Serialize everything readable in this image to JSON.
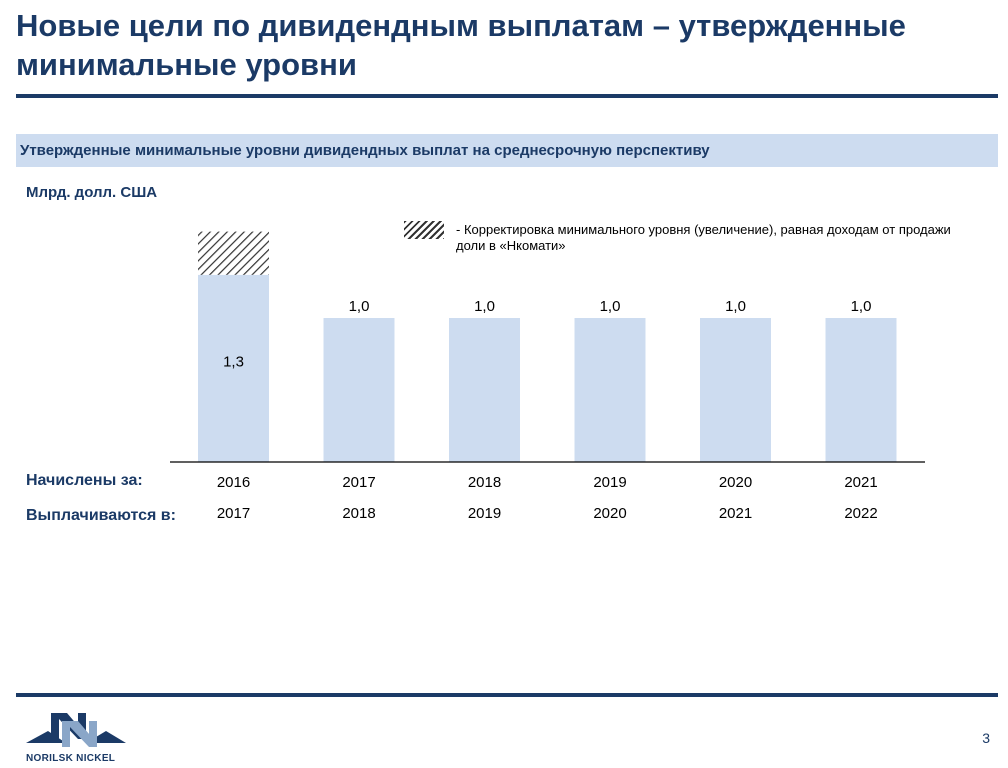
{
  "header": {
    "title": "Новые цели по дивидендным выплатам – утвержденные минимальные уровни"
  },
  "section": {
    "title": "Утвержденные минимальные уровни дивидендных выплат на среднесрочную перспективу"
  },
  "legend": {
    "text": "- Корректировка минимального уровня (увеличение), равная доходам от продажи доли в «Нкомати»"
  },
  "rows": {
    "accrued_label": "Начислены за:",
    "paid_label": "Выплачиваются в:"
  },
  "chart_data": {
    "type": "bar",
    "stacked": true,
    "ylabel": "Млрд. долл. США",
    "categories": [
      "2016",
      "2017",
      "2018",
      "2019",
      "2020",
      "2021"
    ],
    "paid_years": [
      "2017",
      "2018",
      "2019",
      "2020",
      "2021",
      "2022"
    ],
    "series": [
      {
        "values": [
          1.3,
          1.0,
          1.0,
          1.0,
          1.0,
          1.0
        ],
        "labels": [
          "1,3",
          "1,0",
          "1,0",
          "1,0",
          "1,0",
          "1,0"
        ],
        "color": "#cddcf0"
      },
      {
        "values": [
          0.3,
          0,
          0,
          0,
          0,
          0
        ],
        "pattern": "hatched",
        "color": "#333333"
      }
    ],
    "ylim": [
      0,
      1.6
    ],
    "grid": false,
    "legend_position": "top-right"
  },
  "footer": {
    "company": "NORILSK NICKEL",
    "page_number": "3"
  },
  "colors": {
    "brand_navy": "#1b3a66",
    "bar_fill": "#cddcf0",
    "hatch": "#333333"
  }
}
